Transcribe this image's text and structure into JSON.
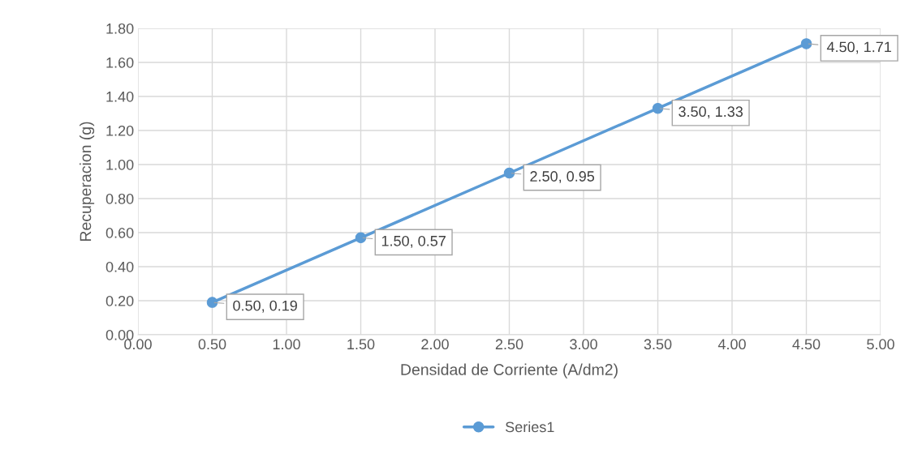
{
  "chart_data": {
    "type": "line",
    "xlabel": "Densidad de Corriente (A/dm2)",
    "ylabel": "Recuperacion (g)",
    "x": [
      0.5,
      1.5,
      2.5,
      3.5,
      4.5
    ],
    "series": [
      {
        "name": "Series1",
        "color": "#5b9bd5",
        "values": [
          0.19,
          0.57,
          0.95,
          1.33,
          1.71
        ],
        "value_labels": [
          "0.50, 0.19",
          "1.50, 0.57",
          "2.50, 0.95",
          "3.50, 1.33",
          "4.50, 1.71"
        ]
      }
    ],
    "xlim": [
      0,
      5
    ],
    "ylim": [
      0,
      1.8
    ],
    "xticks": [
      {
        "value": 0,
        "label": "0.00"
      },
      {
        "value": 0.5,
        "label": "0.50"
      },
      {
        "value": 1,
        "label": "1.00"
      },
      {
        "value": 1.5,
        "label": "1.50"
      },
      {
        "value": 2,
        "label": "2.00"
      },
      {
        "value": 2.5,
        "label": "2.50"
      },
      {
        "value": 3,
        "label": "3.00"
      },
      {
        "value": 3.5,
        "label": "3.50"
      },
      {
        "value": 4,
        "label": "4.00"
      },
      {
        "value": 4.5,
        "label": "4.50"
      },
      {
        "value": 5,
        "label": "5.00"
      }
    ],
    "yticks": [
      {
        "value": 0,
        "label": "0.00"
      },
      {
        "value": 0.2,
        "label": "0.20"
      },
      {
        "value": 0.4,
        "label": "0.40"
      },
      {
        "value": 0.6,
        "label": "0.60"
      },
      {
        "value": 0.8,
        "label": "0.80"
      },
      {
        "value": 1,
        "label": "1.00"
      },
      {
        "value": 1.2,
        "label": "1.20"
      },
      {
        "value": 1.4,
        "label": "1.40"
      },
      {
        "value": 1.6,
        "label": "1.60"
      },
      {
        "value": 1.8,
        "label": "1.80"
      }
    ],
    "grid": true,
    "legend": "bottom",
    "marker": "circle",
    "line_style": "solid"
  }
}
